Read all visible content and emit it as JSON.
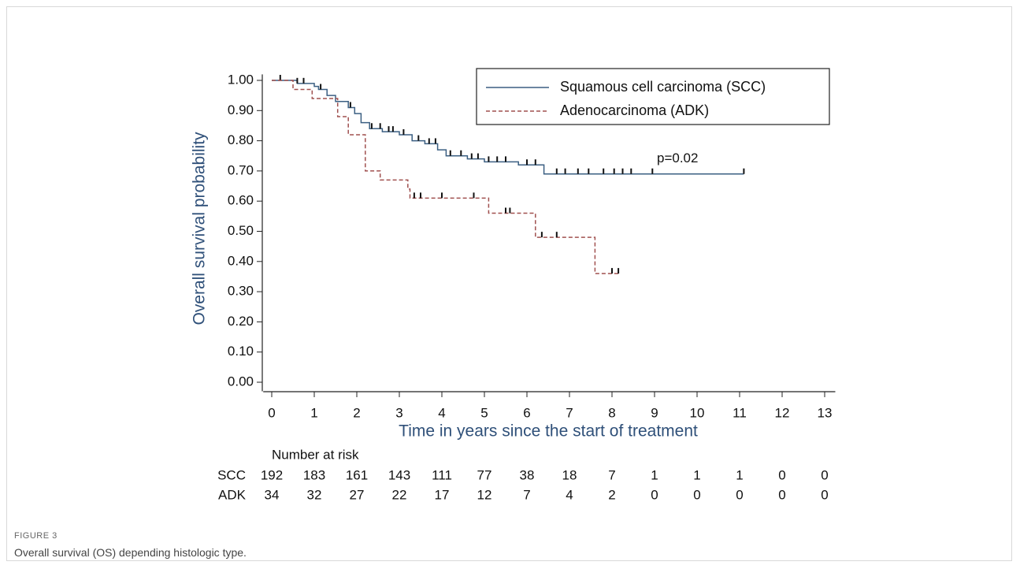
{
  "chart_data": {
    "type": "step",
    "ylabel": "Overall survival probability",
    "xlabel": "Time in years since the start of treatment",
    "xlim": [
      -0.2,
      13.25
    ],
    "ylim": [
      -0.03,
      1.02
    ],
    "xticks": [
      0,
      1,
      2,
      3,
      4,
      5,
      6,
      7,
      8,
      9,
      10,
      11,
      12,
      13
    ],
    "yticks": [
      {
        "value": 0,
        "label": "0.00"
      },
      {
        "value": 0.1,
        "label": "0.10"
      },
      {
        "value": 0.2,
        "label": "0.20"
      },
      {
        "value": 0.3,
        "label": "0.30"
      },
      {
        "value": 0.4,
        "label": "0.40"
      },
      {
        "value": 0.5,
        "label": "0.50"
      },
      {
        "value": 0.6,
        "label": "0.60"
      },
      {
        "value": 0.7,
        "label": "0.70"
      },
      {
        "value": 0.8,
        "label": "0.80"
      },
      {
        "value": 0.9,
        "label": "0.90"
      },
      {
        "value": 1,
        "label": "1.00"
      }
    ],
    "legend": "top-right",
    "annotation": {
      "text": "p=0.02",
      "x": 11,
      "y": 0.74
    },
    "series": [
      {
        "name": "Squamous cell carcinoma (SCC)",
        "color": "#3b5f82",
        "dashed": false,
        "x": [
          0,
          0.6,
          1.0,
          1.1,
          1.3,
          1.5,
          1.8,
          1.95,
          2.1,
          2.3,
          2.6,
          3.0,
          3.3,
          3.6,
          3.9,
          4.1,
          4.6,
          5.0,
          5.8,
          6.4,
          11.1
        ],
        "values": [
          1.0,
          0.99,
          0.98,
          0.97,
          0.95,
          0.93,
          0.91,
          0.89,
          0.86,
          0.84,
          0.83,
          0.82,
          0.8,
          0.79,
          0.77,
          0.75,
          0.74,
          0.73,
          0.72,
          0.69,
          0.69
        ],
        "censored": {
          "x": [
            0.2,
            0.6,
            0.75,
            1.15,
            1.85,
            2.35,
            2.55,
            2.75,
            2.85,
            3.1,
            3.45,
            3.7,
            3.85,
            4.2,
            4.45,
            4.7,
            4.85,
            5.1,
            5.3,
            5.5,
            6.0,
            6.2,
            6.7,
            6.9,
            7.2,
            7.45,
            7.8,
            8.05,
            8.25,
            8.45,
            8.95,
            11.1
          ],
          "y": [
            1.0,
            0.99,
            0.99,
            0.97,
            0.91,
            0.84,
            0.84,
            0.83,
            0.83,
            0.82,
            0.8,
            0.79,
            0.79,
            0.75,
            0.75,
            0.74,
            0.74,
            0.73,
            0.73,
            0.73,
            0.72,
            0.72,
            0.69,
            0.69,
            0.69,
            0.69,
            0.69,
            0.69,
            0.69,
            0.69,
            0.69,
            0.69
          ]
        }
      },
      {
        "name": "Adenocarcinoma (ADK)",
        "color": "#a0504f",
        "dashed": true,
        "x": [
          0,
          0.5,
          0.95,
          1.55,
          1.8,
          2.2,
          2.55,
          3.2,
          3.25,
          5.1,
          6.2,
          7.6,
          8.2
        ],
        "values": [
          1.0,
          0.97,
          0.94,
          0.88,
          0.82,
          0.7,
          0.67,
          0.64,
          0.61,
          0.56,
          0.48,
          0.36,
          0.36
        ],
        "censored": {
          "x": [
            3.35,
            3.5,
            4.0,
            4.75,
            5.5,
            5.6,
            6.35,
            6.7,
            8.0,
            8.15
          ],
          "y": [
            0.61,
            0.61,
            0.61,
            0.61,
            0.56,
            0.56,
            0.48,
            0.48,
            0.36,
            0.36
          ]
        }
      }
    ],
    "risk_table": {
      "title": "Number at risk",
      "rows": [
        {
          "label": "SCC",
          "values": [
            192,
            183,
            161,
            143,
            111,
            77,
            38,
            18,
            7,
            1,
            1,
            1,
            0,
            0
          ]
        },
        {
          "label": "ADK",
          "values": [
            34,
            32,
            27,
            22,
            17,
            12,
            7,
            4,
            2,
            0,
            0,
            0,
            0,
            0
          ]
        }
      ]
    }
  },
  "figure": {
    "label": "FIGURE 3",
    "caption": "Overall survival (OS) depending histologic type."
  }
}
